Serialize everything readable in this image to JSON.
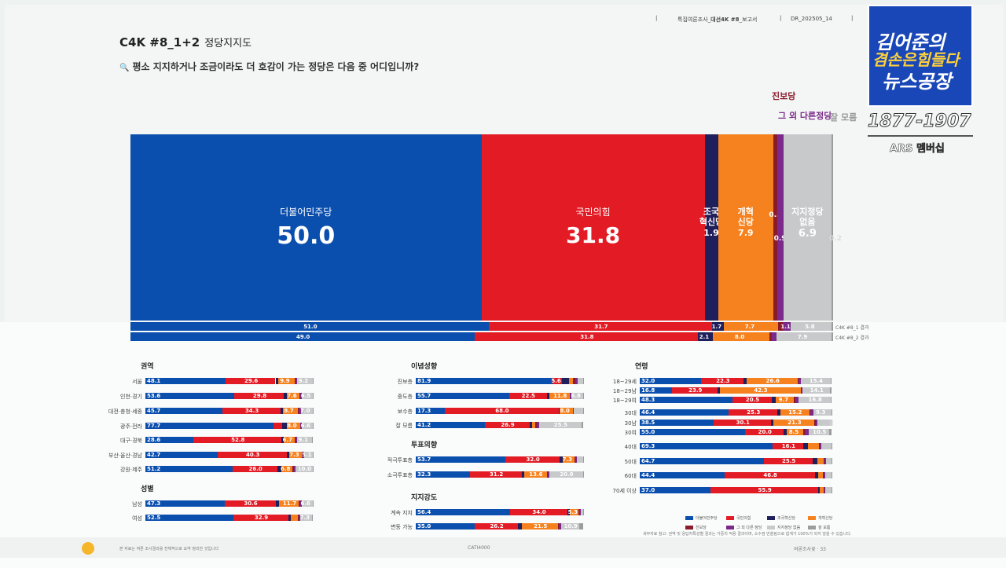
{
  "header": {
    "report_label": "특집여론조사_",
    "report_bold": "대선4K #8",
    "report_suffix": "_보고서",
    "report_code": "DR_202505_14"
  },
  "title": {
    "code": "C4K #8_1+2",
    "name": "정당지지도",
    "question": "평소 지지하거나 조금이라도 더 호감이 가는 정당은 다음 중 어디입니까?"
  },
  "channel": {
    "line1": "김어준의",
    "line2": "겸손은힘들다",
    "line3": "뉴스공장",
    "phone": "1877-1907",
    "ars": "ARS 멤버십"
  },
  "colors": {
    "dem": "#0b4fae",
    "ppp": "#e21b25",
    "rebuild": "#1f1f5c",
    "reform": "#f6821f",
    "progressive": "#8b1a2a",
    "other": "#7b2a8b",
    "none": "#c8c9cb",
    "dk": "#9c9c9c"
  },
  "top_labels": {
    "progressive": "진보당",
    "other": "그 외 다른정당",
    "dk": "잘 모름"
  },
  "chart_data": {
    "type": "bar",
    "title": "정당지지도",
    "categories": [
      "더불어민주당",
      "국민의힘",
      "조국혁신당",
      "개혁신당",
      "진보당",
      "그 외 다른정당",
      "지지정당 없음",
      "잘 모름"
    ],
    "main": {
      "label_lines": [
        [
          "더불어민주당"
        ],
        [
          "국민의힘"
        ],
        [
          "조국",
          "혁신당"
        ],
        [
          "개혁",
          "신당"
        ],
        [
          ""
        ],
        [
          ""
        ],
        [
          "지지정당",
          "없음"
        ],
        [
          ""
        ]
      ],
      "values": [
        50.0,
        31.8,
        1.9,
        7.9,
        0.5,
        0.9,
        6.9,
        0.2
      ],
      "value_labels": [
        "50.0",
        "31.8",
        "1.9",
        "7.9",
        "0.5",
        "0.9",
        "6.9",
        "0.2"
      ]
    },
    "comparison": [
      {
        "label": "C4K #8_1 결과",
        "values": [
          51.0,
          31.7,
          1.7,
          7.7,
          0.7,
          1.1,
          5.8,
          0.2
        ],
        "value_labels": [
          "51.0",
          "31.7",
          "1.7",
          "7.7",
          "0.7",
          "1.1",
          "5.8",
          "0.2"
        ]
      },
      {
        "label": "C4K #8_2 결과",
        "values": [
          49.0,
          31.8,
          2.1,
          8.0,
          0.4,
          0.6,
          7.9,
          0.2
        ],
        "value_labels": [
          "49.0",
          "31.8",
          "2.1",
          "8.0",
          "0.4",
          "0.6",
          "7.9",
          "0.2"
        ]
      }
    ],
    "groups": [
      {
        "title": "권역",
        "rows": [
          {
            "label": "서울",
            "values": [
              48.1,
              29.6,
              1.5,
              9.9,
              0.5,
              1.0,
              9.2,
              0.2
            ],
            "labels": [
              "48.1",
              "29.6",
              "",
              "9.9",
              "",
              "",
              "9.2",
              ""
            ]
          },
          {
            "label": "인천·경기",
            "values": [
              53.6,
              29.8,
              1.8,
              7.6,
              0.4,
              0.8,
              6.5,
              0.2
            ],
            "labels": [
              "53.6",
              "29.8",
              "",
              "7.6",
              "",
              "",
              "6.5",
              ""
            ]
          },
          {
            "label": "대전·충청·세종",
            "values": [
              45.7,
              34.3,
              1.5,
              8.7,
              0.6,
              1.2,
              7.0,
              0.2
            ],
            "labels": [
              "45.7",
              "34.3",
              "",
              "8.7",
              "",
              "",
              "7.0",
              ""
            ]
          },
          {
            "label": "광주·전라",
            "values": [
              77.7,
              5.0,
              2.8,
              8.0,
              0.4,
              0.6,
              6.6,
              0.2
            ],
            "labels": [
              "77.7",
              "",
              "",
              "8.0",
              "",
              "",
              "6.6",
              ""
            ]
          },
          {
            "label": "대구·경북",
            "values": [
              28.6,
              52.8,
              1.0,
              6.7,
              0.5,
              0.9,
              9.1,
              0.4
            ],
            "labels": [
              "28.6",
              "52.8",
              "",
              "6.7",
              "",
              "",
              "9.1",
              ""
            ]
          },
          {
            "label": "부산·울산·경남",
            "values": [
              42.7,
              40.3,
              1.7,
              7.3,
              0.4,
              0.7,
              5.1,
              0.2
            ],
            "labels": [
              "42.7",
              "40.3",
              "",
              "7.3",
              "",
              "",
              "5.1",
              ""
            ]
          },
          {
            "label": "강원·제주",
            "values": [
              51.2,
              26.0,
              2.2,
              6.8,
              0.6,
              1.0,
              10.0,
              0.2
            ],
            "labels": [
              "51.2",
              "26.0",
              "",
              "6.8",
              "",
              "",
              "10.0",
              ""
            ]
          }
        ]
      },
      {
        "title": "성별",
        "rows": [
          {
            "label": "남성",
            "values": [
              47.3,
              30.6,
              2.1,
              11.7,
              0.5,
              1.0,
              6.6,
              0.2
            ],
            "labels": [
              "47.3",
              "30.6",
              "",
              "11.7",
              "",
              "",
              "6.6",
              ""
            ]
          },
          {
            "label": "여성",
            "values": [
              52.5,
              32.9,
              1.6,
              4.0,
              0.5,
              0.9,
              7.3,
              0.3
            ],
            "labels": [
              "52.5",
              "32.9",
              "",
              "",
              "",
              "",
              "7.3",
              ""
            ]
          }
        ]
      },
      {
        "title": "이념성향",
        "rows": [
          {
            "label": "진보층",
            "values": [
              81.9,
              5.6,
              4.0,
              2.5,
              1.5,
              1.3,
              3.0,
              0.2
            ],
            "labels": [
              "81.9",
              "5.6",
              "",
              "",
              "",
              "",
              "",
              ""
            ]
          },
          {
            "label": "중도층",
            "values": [
              55.7,
              22.5,
              1.8,
              11.8,
              0.4,
              0.9,
              6.8,
              0.1
            ],
            "labels": [
              "55.7",
              "22.5",
              "",
              "11.8",
              "",
              "",
              "6.8",
              ""
            ]
          },
          {
            "label": "보수층",
            "values": [
              17.3,
              68.0,
              0.6,
              8.0,
              0.2,
              0.5,
              5.2,
              0.2
            ],
            "labels": [
              "17.3",
              "68.0",
              "",
              "8.0",
              "",
              "",
              "",
              ""
            ]
          },
          {
            "label": "잘 모름",
            "values": [
              41.2,
              26.9,
              1.2,
              2.2,
              0.6,
              1.4,
              25.5,
              1.0
            ],
            "labels": [
              "41.2",
              "26.9",
              "",
              "",
              "",
              "",
              "25.5",
              ""
            ]
          }
        ]
      },
      {
        "title": "투표의향",
        "rows": [
          {
            "label": "적극투표층",
            "values": [
              53.7,
              32.0,
              2.0,
              7.3,
              0.5,
              0.9,
              3.4,
              0.2
            ],
            "labels": [
              "53.7",
              "32.0",
              "",
              "7.3",
              "",
              "",
              "",
              ""
            ]
          },
          {
            "label": "소극투표층",
            "values": [
              32.3,
              31.2,
              1.2,
              13.6,
              0.5,
              1.0,
              20.0,
              0.2
            ],
            "labels": [
              "32.3",
              "31.2",
              "",
              "13.6",
              "",
              "",
              "20.0",
              ""
            ]
          }
        ]
      },
      {
        "title": "지지강도",
        "rows": [
          {
            "label": "계속 지지",
            "values": [
              56.4,
              34.0,
              1.6,
              5.3,
              0.5,
              0.8,
              1.2,
              0.2
            ],
            "labels": [
              "56.4",
              "34.0",
              "",
              "5.3",
              "",
              "",
              "",
              ""
            ]
          },
          {
            "label": "변동 가능",
            "values": [
              35.0,
              26.2,
              2.3,
              21.5,
              0.6,
              1.2,
              10.9,
              2.3
            ],
            "labels": [
              "35.0",
              "26.2",
              "",
              "21.5",
              "",
              "",
              "10.9",
              ""
            ]
          }
        ]
      },
      {
        "title": "연령",
        "rows": [
          {
            "label": "18~29세",
            "values": [
              32.0,
              22.3,
              1.5,
              26.6,
              0.5,
              1.1,
              15.4,
              0.6
            ],
            "labels": [
              "32.0",
              "22.3",
              "",
              "26.6",
              "",
              "",
              "15.4",
              ""
            ]
          },
          {
            "label": "18~29남",
            "values": [
              16.8,
              23.9,
              1.0,
              42.3,
              0.3,
              0.7,
              14.1,
              0.9
            ],
            "labels": [
              "16.8",
              "23.9",
              "",
              "42.3",
              "",
              "",
              "14.1",
              ""
            ]
          },
          {
            "label": "18~29여",
            "values": [
              48.3,
              20.5,
              2.0,
              9.7,
              0.7,
              1.6,
              16.8,
              0.4
            ],
            "labels": [
              "48.3",
              "20.5",
              "",
              "9.7",
              "",
              "",
              "16.8",
              ""
            ]
          },
          {
            "label": "30대",
            "values": [
              46.4,
              25.3,
              1.5,
              15.2,
              0.6,
              1.5,
              9.3,
              0.2
            ],
            "labels": [
              "46.4",
              "25.3",
              "",
              "15.2",
              "",
              "",
              "9.3",
              ""
            ]
          },
          {
            "label": "30남",
            "values": [
              38.5,
              30.1,
              1.2,
              21.3,
              0.5,
              0.9,
              7.3,
              0.2
            ],
            "labels": [
              "38.5",
              "30.1",
              "",
              "21.3",
              "",
              "",
              "",
              ""
            ]
          },
          {
            "label": "30여",
            "values": [
              55.0,
              20.0,
              1.8,
              8.5,
              0.7,
              2.2,
              10.5,
              1.3
            ],
            "labels": [
              "55.0",
              "20.0",
              "",
              "8.5",
              "",
              "",
              "10.5",
              ""
            ]
          },
          {
            "label": "40대",
            "values": [
              69.3,
              16.1,
              2.2,
              5.8,
              0.5,
              0.8,
              5.1,
              0.2
            ],
            "labels": [
              "69.3",
              "16.1",
              "",
              "",
              "",
              "",
              "",
              ""
            ]
          },
          {
            "label": "50대",
            "values": [
              64.7,
              25.5,
              2.6,
              3.2,
              0.5,
              0.7,
              2.6,
              0.2
            ],
            "labels": [
              "64.7",
              "25.5",
              "",
              "",
              "",
              "",
              "",
              ""
            ]
          },
          {
            "label": "60대",
            "values": [
              44.4,
              46.8,
              1.8,
              2.6,
              0.4,
              0.6,
              3.2,
              0.2
            ],
            "labels": [
              "44.4",
              "46.8",
              "",
              "",
              "",
              "",
              "",
              ""
            ]
          },
          {
            "label": "70세 이상",
            "values": [
              37.0,
              55.9,
              1.0,
              2.0,
              0.3,
              0.5,
              3.1,
              0.2
            ],
            "labels": [
              "37.0",
              "55.9",
              "",
              "",
              "",
              "",
              "",
              ""
            ]
          }
        ]
      }
    ]
  },
  "legend": [
    "더불어민주당",
    "국민의힘",
    "조국혁신당",
    "개혁신당",
    "진보당",
    "그 외 다른 정당",
    "지지정당 없음",
    "잘 모름"
  ],
  "note": "세부자료 참고: 권역 및 응답자특성별 결과는 가중치 적용 결과이며, 소수점 반올림으로 합계가 100%가 되지 않을 수 있습니다.",
  "footer": {
    "left_note": "본 자료는 여론 조사결과를 전체적으로 요약 정리한 것입니다",
    "center": "CATI4000",
    "right": "여론조사꽃 · 33"
  }
}
